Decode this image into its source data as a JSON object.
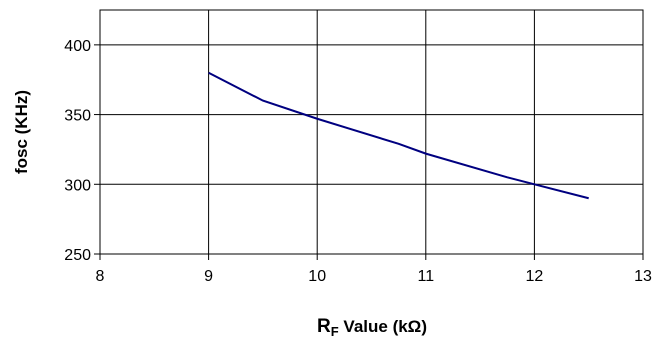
{
  "chart_data": {
    "type": "line",
    "ylabel": "fosc (KHz)",
    "xlabel": {
      "main": "R",
      "subscript": "F",
      "rest": " Value (kΩ)"
    },
    "x": [
      9,
      9.5,
      10,
      10.75,
      11,
      11.75,
      12,
      12.5
    ],
    "series": [
      {
        "values": [
          380,
          360,
          347,
          329,
          322,
          305,
          300,
          290
        ]
      }
    ],
    "xlim": [
      8,
      13
    ],
    "ylim": [
      250,
      425
    ],
    "xticks": [
      8,
      9,
      10,
      11,
      12,
      13
    ],
    "yticks": [
      250,
      300,
      350,
      400
    ],
    "grid": true,
    "line_color": "#000080"
  }
}
